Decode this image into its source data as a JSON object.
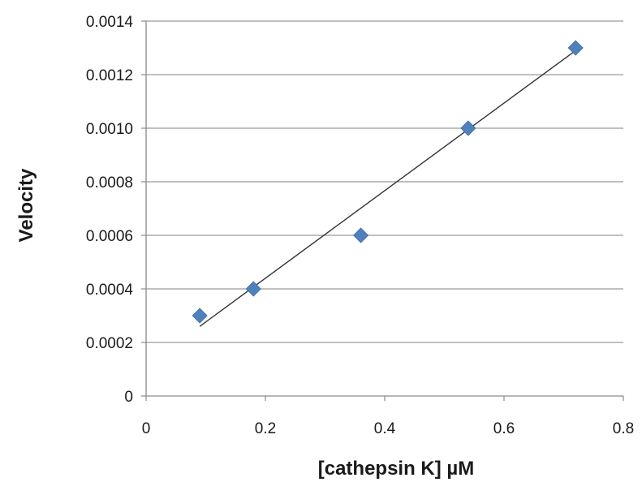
{
  "chart_data": {
    "type": "scatter",
    "xlabel": "[cathepsin K] µM",
    "ylabel": "Velocity",
    "xlim": [
      0,
      0.8
    ],
    "ylim": [
      0,
      0.0014
    ],
    "x_ticks": [
      "0",
      "0.2",
      "0.4",
      "0.6",
      "0.8"
    ],
    "x_tick_values": [
      0,
      0.2,
      0.4,
      0.6,
      0.8
    ],
    "y_ticks": [
      "0",
      "0.0002",
      "0.0004",
      "0.0006",
      "0.0008",
      "0.0010",
      "0.0012",
      "0.0014"
    ],
    "y_tick_values": [
      0,
      0.0002,
      0.0004,
      0.0006,
      0.0008,
      0.001,
      0.0012,
      0.0014
    ],
    "grid": "horizontal",
    "series": [
      {
        "marker": "diamond",
        "color": "#4f81bd",
        "points": [
          {
            "x": 0.09,
            "y": 0.0003
          },
          {
            "x": 0.18,
            "y": 0.0004
          },
          {
            "x": 0.36,
            "y": 0.0006
          },
          {
            "x": 0.54,
            "y": 0.001
          },
          {
            "x": 0.72,
            "y": 0.0013
          }
        ]
      }
    ],
    "trendline": {
      "type": "linear",
      "x_start": 0.09,
      "y_start": 0.00026,
      "x_end": 0.72,
      "y_end": 0.00129,
      "color": "#333333"
    }
  }
}
